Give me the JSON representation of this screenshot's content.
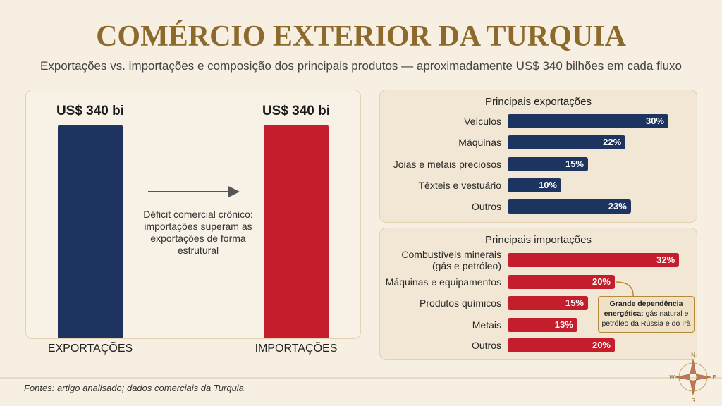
{
  "title": "COMÉRCIO EXTERIOR DA TURQUIA",
  "subtitle": "Exportações vs. importações e composição dos principais produtos — aproximadamente US$ 340 bilhões em cada fluxo",
  "chart_data": [
    {
      "type": "bar",
      "categories": [
        "EXPORTAÇÕES",
        "IMPORTAÇÕES"
      ],
      "values": [
        340,
        340
      ],
      "value_labels": [
        "US$ 340 bi",
        "US$ 340 bi"
      ],
      "colors": [
        "#1d3461",
        "#c41e2c"
      ],
      "annotation": "Déficit comercial crônico: importações superam as exportações de forma estrutural"
    },
    {
      "type": "hbar",
      "title": "Principais exportações",
      "categories": [
        "Veículos",
        "Máquinas",
        "Joias e metais preciosos",
        "Têxteis e vestuário",
        "Outros"
      ],
      "values": [
        30,
        22,
        15,
        10,
        23
      ],
      "value_labels": [
        "30%",
        "22%",
        "15%",
        "10%",
        "23%"
      ],
      "color": "#1d3461"
    },
    {
      "type": "hbar",
      "title": "Principais importações",
      "categories": [
        "Combustíveis minerais (gás e petróleo)",
        "Máquinas e equipamentos",
        "Produtos químicos",
        "Metais",
        "Outros"
      ],
      "values": [
        32,
        20,
        15,
        13,
        20
      ],
      "value_labels": [
        "32%",
        "20%",
        "15%",
        "13%",
        "20%"
      ],
      "color": "#c41e2c",
      "annotation": {
        "bold": "Grande dependência energética:",
        "text": "gás natural e petróleo da Rússia e do Irã"
      }
    }
  ],
  "footer": "Fontes: artigo analisado; dados comerciais da Turquia",
  "compass": {
    "n": "N",
    "e": "E",
    "s": "S",
    "w": "W"
  }
}
